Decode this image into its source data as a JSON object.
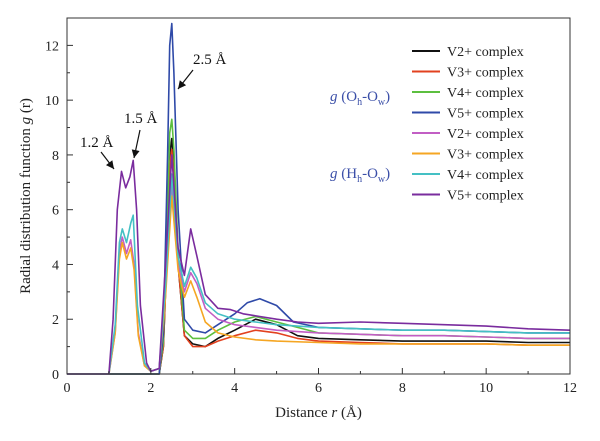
{
  "chart_data": {
    "type": "line",
    "xlabel_prefix": "Distance ",
    "xlabel_var": "r",
    "xlabel_suffix": " (Å)",
    "ylabel_prefix": "Radial distribution function ",
    "ylabel_var": "g",
    "ylabel_suffix": " (r)",
    "xlim": [
      0,
      12
    ],
    "ylim": [
      0,
      13
    ],
    "xticks": [
      0,
      2,
      4,
      6,
      8,
      10,
      12
    ],
    "yticks": [
      0,
      2,
      4,
      6,
      8,
      10,
      12
    ],
    "grid": false,
    "legend_position": "top-right",
    "group_labels": [
      {
        "text": "g (Oh-Ow)",
        "main": "g",
        "open": " (O",
        "sub1": "h",
        "mid": "-O",
        "sub2": "w",
        "close": ")"
      },
      {
        "text": "g (Hh-Ow)",
        "main": "g",
        "open": " (H",
        "sub1": "h",
        "mid": "-O",
        "sub2": "w",
        "close": ")"
      }
    ],
    "annotations": [
      {
        "text": "1.2 Å",
        "x": 1.3,
        "y": 7.5
      },
      {
        "text": "1.5 Å",
        "x": 1.65,
        "y": 7.8
      },
      {
        "text": "2.5 Å",
        "x": 2.55,
        "y": 8.6
      }
    ],
    "series": [
      {
        "name": "V2+ complex",
        "color": "#111111",
        "group": 0,
        "points": [
          [
            0,
            0
          ],
          [
            2.2,
            0
          ],
          [
            2.3,
            1.0
          ],
          [
            2.4,
            5.0
          ],
          [
            2.45,
            8.0
          ],
          [
            2.5,
            8.6
          ],
          [
            2.55,
            7.5
          ],
          [
            2.65,
            4.0
          ],
          [
            2.8,
            1.4
          ],
          [
            3.0,
            1.1
          ],
          [
            3.3,
            1.0
          ],
          [
            3.6,
            1.3
          ],
          [
            4.0,
            1.6
          ],
          [
            4.5,
            2.0
          ],
          [
            5.0,
            1.8
          ],
          [
            5.5,
            1.4
          ],
          [
            6.0,
            1.3
          ],
          [
            7.0,
            1.25
          ],
          [
            8.0,
            1.2
          ],
          [
            9.0,
            1.2
          ],
          [
            10.0,
            1.2
          ],
          [
            11.0,
            1.15
          ],
          [
            12.0,
            1.15
          ]
        ]
      },
      {
        "name": "V3+ complex",
        "color": "#e2411f",
        "group": 0,
        "points": [
          [
            0,
            0
          ],
          [
            2.2,
            0
          ],
          [
            2.3,
            1.0
          ],
          [
            2.4,
            5.0
          ],
          [
            2.45,
            7.6
          ],
          [
            2.5,
            8.2
          ],
          [
            2.55,
            7.2
          ],
          [
            2.65,
            4.0
          ],
          [
            2.8,
            1.4
          ],
          [
            3.0,
            1.0
          ],
          [
            3.3,
            1.0
          ],
          [
            3.6,
            1.2
          ],
          [
            4.0,
            1.4
          ],
          [
            4.5,
            1.6
          ],
          [
            5.0,
            1.5
          ],
          [
            5.5,
            1.3
          ],
          [
            6.0,
            1.2
          ],
          [
            7.0,
            1.15
          ],
          [
            8.0,
            1.1
          ],
          [
            9.0,
            1.1
          ],
          [
            10.0,
            1.1
          ],
          [
            11.0,
            1.05
          ],
          [
            12.0,
            1.05
          ]
        ]
      },
      {
        "name": "V4+ complex",
        "color": "#5cbf3f",
        "group": 0,
        "points": [
          [
            0,
            0
          ],
          [
            2.2,
            0
          ],
          [
            2.3,
            1.2
          ],
          [
            2.4,
            6.0
          ],
          [
            2.45,
            8.8
          ],
          [
            2.5,
            9.3
          ],
          [
            2.55,
            8.2
          ],
          [
            2.65,
            4.5
          ],
          [
            2.8,
            1.6
          ],
          [
            3.0,
            1.3
          ],
          [
            3.3,
            1.3
          ],
          [
            3.6,
            1.6
          ],
          [
            4.0,
            1.9
          ],
          [
            4.5,
            2.1
          ],
          [
            5.0,
            1.9
          ],
          [
            5.5,
            1.7
          ],
          [
            6.0,
            1.5
          ],
          [
            7.0,
            1.45
          ],
          [
            8.0,
            1.4
          ],
          [
            9.0,
            1.4
          ],
          [
            10.0,
            1.35
          ],
          [
            11.0,
            1.3
          ],
          [
            12.0,
            1.3
          ]
        ]
      },
      {
        "name": "V5+ complex",
        "color": "#2f4aa8",
        "group": 0,
        "points": [
          [
            0,
            0
          ],
          [
            2.2,
            0
          ],
          [
            2.3,
            1.5
          ],
          [
            2.4,
            8.0
          ],
          [
            2.45,
            12.0
          ],
          [
            2.5,
            12.8
          ],
          [
            2.55,
            11.0
          ],
          [
            2.65,
            6.0
          ],
          [
            2.8,
            2.0
          ],
          [
            3.0,
            1.6
          ],
          [
            3.3,
            1.5
          ],
          [
            3.6,
            1.8
          ],
          [
            4.0,
            2.2
          ],
          [
            4.3,
            2.6
          ],
          [
            4.6,
            2.75
          ],
          [
            5.0,
            2.5
          ],
          [
            5.4,
            1.9
          ],
          [
            6.0,
            1.7
          ],
          [
            7.0,
            1.65
          ],
          [
            8.0,
            1.6
          ],
          [
            9.0,
            1.6
          ],
          [
            10.0,
            1.55
          ],
          [
            11.0,
            1.5
          ],
          [
            12.0,
            1.5
          ]
        ]
      },
      {
        "name": "V2+ complex",
        "color": "#c25ec4",
        "group": 1,
        "points": [
          [
            0,
            0
          ],
          [
            1.0,
            0
          ],
          [
            1.15,
            1.5
          ],
          [
            1.25,
            4.5
          ],
          [
            1.32,
            5.0
          ],
          [
            1.42,
            4.4
          ],
          [
            1.52,
            4.9
          ],
          [
            1.6,
            4.0
          ],
          [
            1.7,
            1.5
          ],
          [
            1.85,
            0.3
          ],
          [
            2.0,
            0.1
          ],
          [
            2.2,
            0.2
          ],
          [
            2.35,
            3.0
          ],
          [
            2.5,
            7.0
          ],
          [
            2.65,
            4.0
          ],
          [
            2.8,
            3.0
          ],
          [
            2.95,
            3.7
          ],
          [
            3.1,
            3.3
          ],
          [
            3.3,
            2.4
          ],
          [
            3.6,
            2.0
          ],
          [
            4.0,
            1.8
          ],
          [
            4.5,
            1.7
          ],
          [
            5.0,
            1.6
          ],
          [
            6.0,
            1.5
          ],
          [
            7.0,
            1.45
          ],
          [
            8.0,
            1.4
          ],
          [
            9.0,
            1.4
          ],
          [
            10.0,
            1.35
          ],
          [
            11.0,
            1.3
          ],
          [
            12.0,
            1.3
          ]
        ]
      },
      {
        "name": "V3+ complex",
        "color": "#f5a623",
        "group": 1,
        "points": [
          [
            0,
            0
          ],
          [
            1.0,
            0
          ],
          [
            1.15,
            1.5
          ],
          [
            1.25,
            4.2
          ],
          [
            1.32,
            4.8
          ],
          [
            1.42,
            4.2
          ],
          [
            1.52,
            4.6
          ],
          [
            1.6,
            3.8
          ],
          [
            1.7,
            1.4
          ],
          [
            1.85,
            0.3
          ],
          [
            2.0,
            0.1
          ],
          [
            2.2,
            0.2
          ],
          [
            2.35,
            2.8
          ],
          [
            2.5,
            6.5
          ],
          [
            2.65,
            3.8
          ],
          [
            2.8,
            2.8
          ],
          [
            2.95,
            3.4
          ],
          [
            3.1,
            2.8
          ],
          [
            3.3,
            1.9
          ],
          [
            3.6,
            1.5
          ],
          [
            4.0,
            1.35
          ],
          [
            4.5,
            1.25
          ],
          [
            5.0,
            1.2
          ],
          [
            6.0,
            1.15
          ],
          [
            7.0,
            1.1
          ],
          [
            8.0,
            1.1
          ],
          [
            9.0,
            1.1
          ],
          [
            10.0,
            1.1
          ],
          [
            11.0,
            1.05
          ],
          [
            12.0,
            1.05
          ]
        ]
      },
      {
        "name": "V4+ complex",
        "color": "#44c0c4",
        "group": 1,
        "points": [
          [
            0,
            0
          ],
          [
            1.0,
            0
          ],
          [
            1.15,
            1.8
          ],
          [
            1.25,
            4.8
          ],
          [
            1.32,
            5.3
          ],
          [
            1.42,
            4.8
          ],
          [
            1.52,
            5.5
          ],
          [
            1.58,
            5.8
          ],
          [
            1.68,
            2.5
          ],
          [
            1.85,
            0.4
          ],
          [
            2.0,
            0.1
          ],
          [
            2.2,
            0.2
          ],
          [
            2.35,
            3.2
          ],
          [
            2.5,
            7.3
          ],
          [
            2.65,
            4.3
          ],
          [
            2.8,
            3.2
          ],
          [
            2.95,
            3.9
          ],
          [
            3.1,
            3.5
          ],
          [
            3.3,
            2.6
          ],
          [
            3.6,
            2.2
          ],
          [
            4.0,
            2.0
          ],
          [
            4.5,
            1.9
          ],
          [
            5.0,
            1.8
          ],
          [
            6.0,
            1.7
          ],
          [
            7.0,
            1.65
          ],
          [
            8.0,
            1.6
          ],
          [
            9.0,
            1.6
          ],
          [
            10.0,
            1.55
          ],
          [
            11.0,
            1.5
          ],
          [
            12.0,
            1.5
          ]
        ]
      },
      {
        "name": "V5+ complex",
        "color": "#7a2c9e",
        "group": 1,
        "points": [
          [
            0,
            0
          ],
          [
            1.0,
            0
          ],
          [
            1.1,
            2.0
          ],
          [
            1.2,
            6.0
          ],
          [
            1.3,
            7.4
          ],
          [
            1.4,
            6.8
          ],
          [
            1.5,
            7.2
          ],
          [
            1.58,
            7.8
          ],
          [
            1.66,
            6.0
          ],
          [
            1.75,
            2.5
          ],
          [
            1.9,
            0.4
          ],
          [
            2.0,
            0.1
          ],
          [
            2.2,
            0.2
          ],
          [
            2.35,
            4.0
          ],
          [
            2.5,
            8.0
          ],
          [
            2.65,
            4.6
          ],
          [
            2.8,
            3.6
          ],
          [
            2.95,
            5.3
          ],
          [
            3.1,
            4.3
          ],
          [
            3.3,
            2.9
          ],
          [
            3.6,
            2.4
          ],
          [
            3.9,
            2.35
          ],
          [
            4.2,
            2.2
          ],
          [
            4.6,
            2.1
          ],
          [
            5.0,
            2.0
          ],
          [
            5.5,
            1.9
          ],
          [
            6.0,
            1.85
          ],
          [
            7.0,
            1.9
          ],
          [
            8.0,
            1.85
          ],
          [
            9.0,
            1.8
          ],
          [
            10.0,
            1.75
          ],
          [
            11.0,
            1.65
          ],
          [
            12.0,
            1.6
          ]
        ]
      }
    ]
  }
}
